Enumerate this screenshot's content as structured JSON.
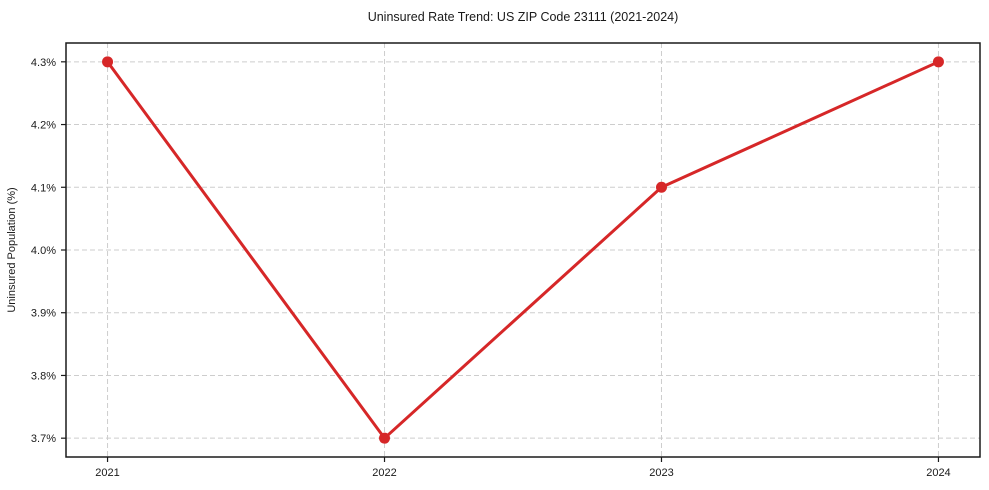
{
  "chart_data": {
    "type": "line",
    "title": "Uninsured Rate Trend: US ZIP Code 23111 (2021-2024)",
    "xlabel": "",
    "ylabel": "Uninsured Population (%)",
    "x": [
      2021,
      2022,
      2023,
      2024
    ],
    "categories": [
      "2021",
      "2022",
      "2023",
      "2024"
    ],
    "values": [
      4.3,
      3.7,
      4.1,
      4.3
    ],
    "yticks": [
      3.7,
      3.8,
      3.9,
      4.0,
      4.1,
      4.2,
      4.3
    ],
    "ytick_labels": [
      "3.7%",
      "3.8%",
      "3.9%",
      "4.0%",
      "4.1%",
      "4.2%",
      "4.3%"
    ],
    "xlim": [
      2020.85,
      2024.15
    ],
    "ylim": [
      3.67,
      4.33
    ],
    "grid": true,
    "grid_style": "dashed",
    "legend": false,
    "colors": {
      "line": "#d62728",
      "marker": "#d62728",
      "grid": "#cdcdcd",
      "axis": "#1a1a1a",
      "text": "#1a1a1a",
      "background": "#ffffff"
    }
  }
}
